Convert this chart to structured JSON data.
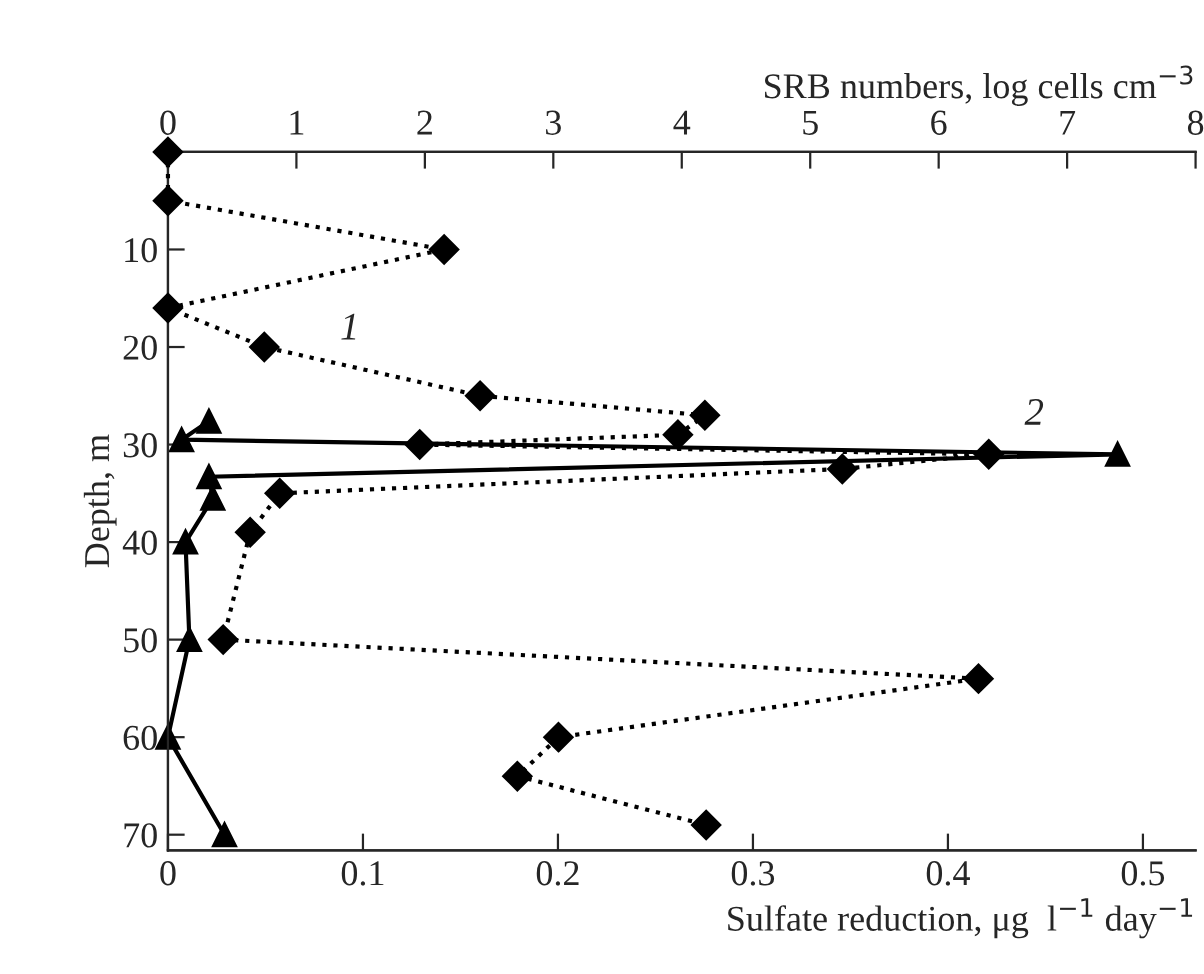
{
  "chart_data": {
    "type": "line",
    "xlabel": "Sulfate reduction, μg  l$^{−1}$ day$^{−1}$",
    "x2label": "SRB numbers, log cells cm$^{−3}$",
    "ylabel": "Depth, m",
    "xlim": [
      0,
      0.527
    ],
    "xticks": [
      0,
      0.1,
      0.2,
      0.3,
      0.4,
      0.5
    ],
    "x2lim": [
      0,
      8
    ],
    "x2ticks": [
      0,
      1,
      2,
      3,
      4,
      5,
      6,
      7,
      8
    ],
    "ylim": [
      71.6,
      0
    ],
    "yticks": [
      10,
      20,
      30,
      40,
      50,
      60,
      70
    ],
    "grid": false,
    "legend": false,
    "series": [
      {
        "name": "1",
        "axis": "x2",
        "color": "#000000",
        "marker": "diamond",
        "line_style": "dotted",
        "x": [
          0,
          0,
          2.15,
          0,
          0.75,
          2.43,
          4.18,
          3.97,
          1.96,
          6.39,
          5.25,
          0.87,
          0.64,
          0.43,
          6.31,
          3.04,
          2.72,
          4.19
        ],
        "values": [
          0,
          5,
          10,
          16,
          20,
          25,
          27,
          29,
          30,
          31,
          32.5,
          35,
          39,
          50,
          54,
          60,
          64,
          69
        ]
      },
      {
        "name": "2",
        "color": "#000000",
        "marker": "triangle",
        "line_style": "solid",
        "x": [
          0.021,
          0.007,
          0.487,
          0.021,
          0.023,
          0.009,
          0.011,
          0,
          0.029
        ],
        "values": [
          27.6,
          29.5,
          31,
          33.3,
          35.5,
          40,
          50,
          60,
          70
        ]
      }
    ]
  }
}
